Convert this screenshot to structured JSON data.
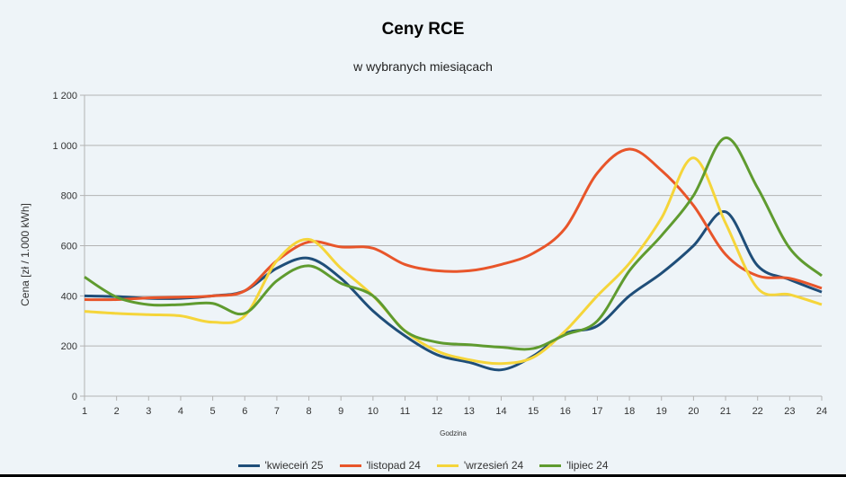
{
  "chart_data": {
    "type": "line",
    "title": "Ceny RCE",
    "subtitle": "w wybranych miesiącach",
    "xlabel": "Godzina",
    "ylabel": "Cena [zł / 1.000 kWh]",
    "ylim": [
      0,
      1200
    ],
    "yticks": [
      0,
      200,
      400,
      600,
      800,
      1000,
      1200
    ],
    "ytick_labels": [
      "0",
      "200",
      "400",
      "600",
      "800",
      "1 000",
      "1 200"
    ],
    "x": [
      1,
      2,
      3,
      4,
      5,
      6,
      7,
      8,
      9,
      10,
      11,
      12,
      13,
      14,
      15,
      16,
      17,
      18,
      19,
      20,
      21,
      22,
      23,
      24
    ],
    "grid": true,
    "legend_position": "bottom",
    "series": [
      {
        "name": "'kwieceiń 25",
        "color": "#1f4e79",
        "values": [
          400,
          397,
          390,
          390,
          400,
          420,
          510,
          550,
          470,
          340,
          240,
          165,
          135,
          105,
          160,
          250,
          280,
          400,
          490,
          600,
          735,
          520,
          465,
          415
        ]
      },
      {
        "name": "'listopad 24",
        "color": "#e8552a",
        "values": [
          385,
          385,
          392,
          395,
          400,
          420,
          540,
          615,
          595,
          590,
          525,
          500,
          500,
          525,
          570,
          670,
          890,
          985,
          900,
          760,
          565,
          480,
          470,
          430
        ]
      },
      {
        "name": "'wrzesień 24",
        "color": "#f5d53a",
        "values": [
          338,
          330,
          325,
          320,
          295,
          320,
          540,
          625,
          510,
          400,
          260,
          180,
          145,
          130,
          155,
          260,
          400,
          530,
          710,
          950,
          690,
          430,
          405,
          365
        ]
      },
      {
        "name": "'lipiec 24",
        "color": "#5f9b2f",
        "values": [
          475,
          395,
          365,
          365,
          370,
          330,
          460,
          520,
          450,
          400,
          260,
          215,
          205,
          195,
          190,
          245,
          300,
          500,
          640,
          800,
          1030,
          830,
          590,
          480
        ]
      }
    ]
  }
}
